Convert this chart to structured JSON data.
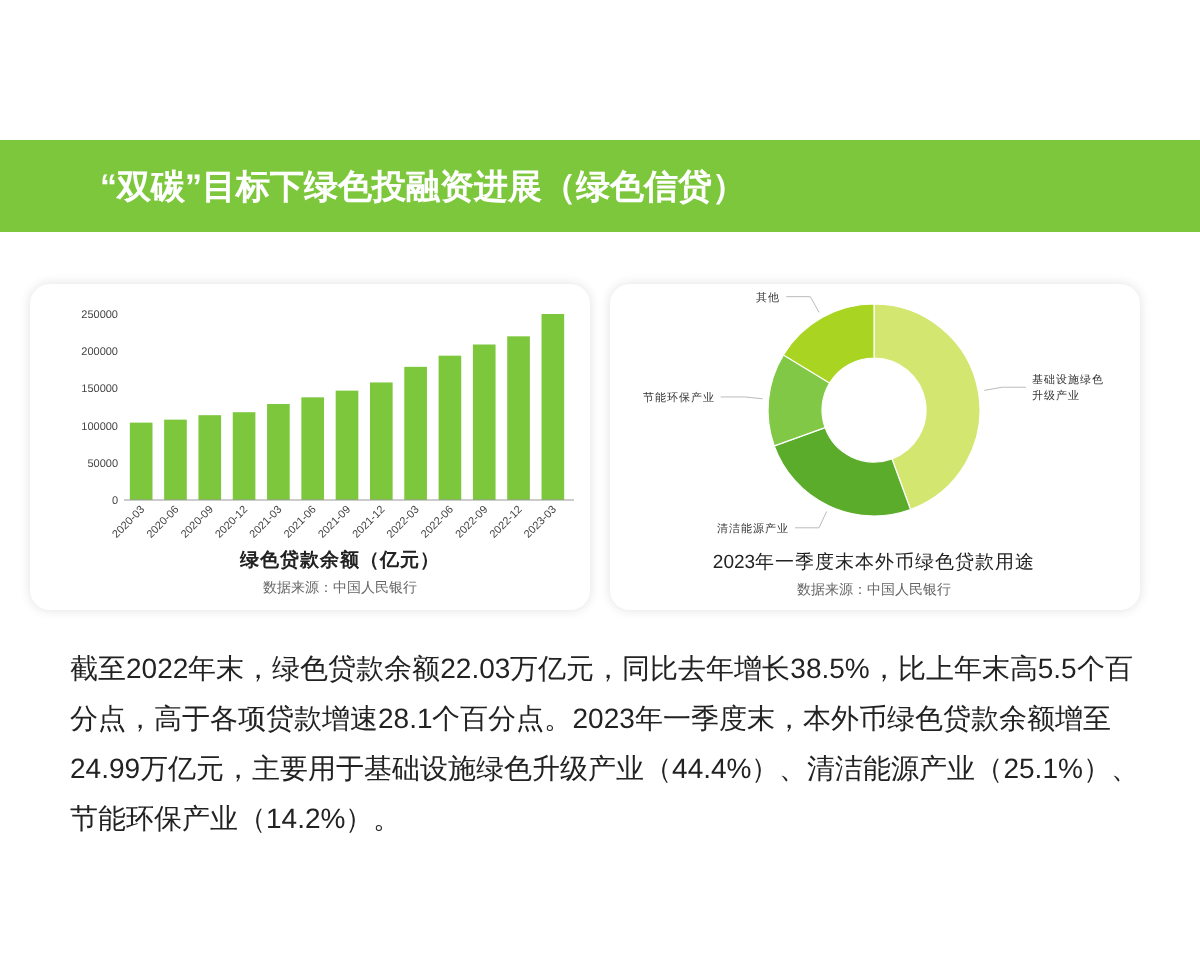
{
  "chart_data": [
    {
      "type": "other",
      "title": "“双碳”目标下绿色投融资进展（绿色信贷）"
    },
    {
      "type": "bar",
      "title": "绿色贷款余额（亿元）",
      "annotations": [
        "数据来源：中国人民银行"
      ],
      "categories": [
        "2020-03",
        "2020-06",
        "2020-09",
        "2020-12",
        "2021-03",
        "2021-06",
        "2021-09",
        "2021-12",
        "2022-03",
        "2022-06",
        "2022-09",
        "2022-12",
        "2023-03"
      ],
      "values": [
        104000,
        108000,
        114000,
        118000,
        129000,
        138000,
        147000,
        158000,
        179000,
        194000,
        209000,
        220000,
        250000
      ],
      "color": "#7dc73d",
      "ylim": [
        0,
        250000
      ],
      "yticks": [
        0,
        50000,
        100000,
        150000,
        200000,
        250000
      ],
      "grid": false
    },
    {
      "type": "donut",
      "title": "2023年一季度末本外币绿色贷款用途",
      "annotations": [
        "数据来源：中国人民银行"
      ],
      "categories": [
        "基础设施绿色升级产业",
        "清洁能源产业",
        "节能环保产业",
        "其他"
      ],
      "values": [
        44.4,
        25.1,
        14.2,
        16.3
      ],
      "colors": [
        "#d3e66f",
        "#5cac2c",
        "#80c846",
        "#a9d421"
      ]
    },
    {
      "type": "other",
      "annotations": [
        "截至2022年末，绿色贷款余额22.03万亿元，同比去年增长38.5%，比上年末高5.5个百分点，高于各项贷款增速28.1个百分点。2023年一季度末，本外币绿色贷款余额增至24.99万亿元，主要用于基础设施绿色升级产业（44.4%）、清洁能源产业（25.1%）、节能环保产业（14.2%）。"
      ]
    }
  ]
}
